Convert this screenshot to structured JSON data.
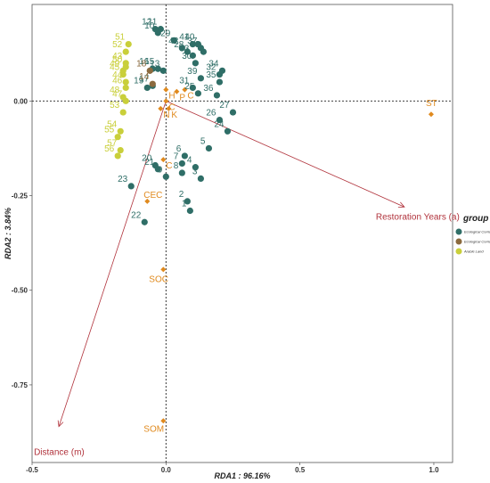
{
  "chart_data": {
    "type": "scatter",
    "xlabel": "RDA1 : 96.16%",
    "ylabel": "RDA2 : 3.84%",
    "xlim": [
      -0.5,
      1.07
    ],
    "ylim": [
      -0.955,
      0.255
    ],
    "x_ticks": [
      {
        "value": -0.5,
        "label": "-0.5"
      },
      {
        "value": 0.0,
        "label": "0.0"
      },
      {
        "value": 0.5,
        "label": "0.5"
      },
      {
        "value": 1.0,
        "label": "1.0"
      }
    ],
    "y_ticks": [
      {
        "value": 0.0,
        "label": "0.00"
      },
      {
        "value": -0.25,
        "label": "-0.25"
      },
      {
        "value": -0.5,
        "label": "-0.50"
      },
      {
        "value": -0.75,
        "label": "-0.75"
      }
    ],
    "grid": false,
    "reference_lines": {
      "x": 0,
      "y": 0,
      "style": "dashed"
    },
    "legend": {
      "title": "group",
      "position": "right",
      "entries": [
        {
          "label": "Ecological Corridor(> 10a)",
          "color": "#2f6e67"
        },
        {
          "label": "Ecological Corridor(<3a)",
          "color": "#8b6a3e"
        },
        {
          "label": "Arable Land",
          "color": "#c9cf3a"
        }
      ]
    },
    "series": [
      {
        "name": "Ecological Corridor(> 10a)",
        "color": "#2f6e67",
        "points": [
          {
            "label": "1",
            "x": 0.09,
            "y": -0.29
          },
          {
            "label": "2",
            "x": 0.08,
            "y": -0.265
          },
          {
            "label": "3",
            "x": 0.13,
            "y": -0.205
          },
          {
            "label": "4",
            "x": 0.11,
            "y": -0.175
          },
          {
            "label": "5",
            "x": 0.16,
            "y": -0.125
          },
          {
            "label": "6",
            "x": 0.07,
            "y": -0.145
          },
          {
            "label": "7",
            "x": 0.06,
            "y": -0.165
          },
          {
            "label": "8",
            "x": 0.06,
            "y": -0.19
          },
          {
            "label": "9",
            "x": 0.0,
            "y": -0.2
          },
          {
            "label": "10",
            "x": -0.03,
            "y": 0.18
          },
          {
            "label": "11",
            "x": -0.02,
            "y": 0.19
          },
          {
            "label": "12",
            "x": -0.04,
            "y": 0.19
          },
          {
            "label": "13",
            "x": -0.01,
            "y": 0.08
          },
          {
            "label": "15",
            "x": -0.03,
            "y": 0.085
          },
          {
            "label": "16",
            "x": -0.05,
            "y": 0.085
          },
          {
            "label": "17",
            "x": -0.05,
            "y": 0.04
          },
          {
            "label": "19",
            "x": -0.07,
            "y": 0.035
          },
          {
            "label": "20",
            "x": -0.04,
            "y": -0.17
          },
          {
            "label": "21",
            "x": -0.03,
            "y": -0.18
          },
          {
            "label": "22",
            "x": -0.08,
            "y": -0.32
          },
          {
            "label": "23",
            "x": -0.13,
            "y": -0.225
          },
          {
            "label": "24",
            "x": 0.23,
            "y": -0.08
          },
          {
            "label": "25",
            "x": 0.12,
            "y": 0.02
          },
          {
            "label": "26",
            "x": 0.2,
            "y": -0.05
          },
          {
            "label": "27",
            "x": 0.25,
            "y": -0.03
          },
          {
            "label": "28",
            "x": 0.08,
            "y": 0.13
          },
          {
            "label": "29",
            "x": 0.03,
            "y": 0.16
          },
          {
            "label": "30",
            "x": 0.11,
            "y": 0.1
          },
          {
            "label": "31",
            "x": 0.1,
            "y": 0.035
          },
          {
            "label": "32",
            "x": 0.2,
            "y": 0.07
          },
          {
            "label": "33",
            "x": 0.1,
            "y": 0.12
          },
          {
            "label": "34",
            "x": 0.21,
            "y": 0.08
          },
          {
            "label": "35",
            "x": 0.2,
            "y": 0.05
          },
          {
            "label": "36",
            "x": 0.19,
            "y": 0.015
          },
          {
            "label": "37",
            "x": 0.13,
            "y": 0.14
          },
          {
            "label": "38",
            "x": 0.14,
            "y": 0.13
          },
          {
            "label": "39",
            "x": 0.13,
            "y": 0.06
          },
          {
            "label": "40",
            "x": 0.12,
            "y": 0.15
          },
          {
            "label": "41",
            "x": 0.1,
            "y": 0.15
          },
          {
            "label": "42",
            "x": 0.06,
            "y": 0.14
          }
        ]
      },
      {
        "name": "Ecological Corridor(<3a)",
        "color": "#8b6a3e",
        "points": [
          {
            "label": "14",
            "x": -0.05,
            "y": 0.045
          },
          {
            "label": "18",
            "x": -0.06,
            "y": 0.08
          }
        ]
      },
      {
        "name": "Arable Land",
        "color": "#c9cf3a",
        "points": [
          {
            "label": "43",
            "x": -0.15,
            "y": 0.1
          },
          {
            "label": "44",
            "x": -0.15,
            "y": 0.05
          },
          {
            "label": "45",
            "x": -0.16,
            "y": 0.07
          },
          {
            "label": "46",
            "x": -0.15,
            "y": 0.035
          },
          {
            "label": "47",
            "x": -0.15,
            "y": 0.0
          },
          {
            "label": "48",
            "x": -0.16,
            "y": 0.01
          },
          {
            "label": "49",
            "x": -0.16,
            "y": 0.08
          },
          {
            "label": "50",
            "x": -0.15,
            "y": 0.09
          },
          {
            "label": "51",
            "x": -0.14,
            "y": 0.15
          },
          {
            "label": "52",
            "x": -0.15,
            "y": 0.13
          },
          {
            "label": "53",
            "x": -0.16,
            "y": -0.03
          },
          {
            "label": "54",
            "x": -0.17,
            "y": -0.08
          },
          {
            "label": "55",
            "x": -0.18,
            "y": -0.095
          },
          {
            "label": "56",
            "x": -0.18,
            "y": -0.145
          },
          {
            "label": "57",
            "x": -0.17,
            "y": -0.13
          }
        ]
      }
    ],
    "env_factors": [
      {
        "label": "ST",
        "x": 0.99,
        "y": -0.035
      },
      {
        "label": "CEC",
        "x": -0.07,
        "y": -0.265
      },
      {
        "label": "SOC",
        "x": -0.01,
        "y": -0.445
      },
      {
        "label": "SOM",
        "x": -0.01,
        "y": -0.845
      },
      {
        "label": "C",
        "x": -0.01,
        "y": -0.155
      },
      {
        "label": "H",
        "x": 0.0,
        "y": 0.03
      },
      {
        "label": "C",
        "x": 0.0,
        "y": 0.0
      },
      {
        "label": "N",
        "x": -0.02,
        "y": -0.02
      },
      {
        "label": "K",
        "x": 0.01,
        "y": -0.02
      },
      {
        "label": "C",
        "x": 0.07,
        "y": 0.03
      },
      {
        "label": "P",
        "x": 0.04,
        "y": 0.025
      }
    ],
    "vectors": [
      {
        "label": "Restoration Years (a)",
        "x": 0.89,
        "y": -0.28
      },
      {
        "label": "Distance (m)",
        "x": -0.4,
        "y": -0.86
      }
    ]
  }
}
